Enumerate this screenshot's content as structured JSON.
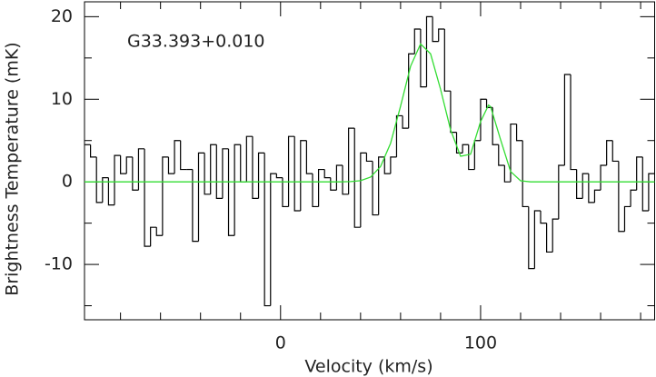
{
  "chart_data": {
    "type": "step",
    "annotation": "G33.393+0.010",
    "xlabel": "Velocity (km/s)",
    "ylabel": "Brightness Temperature (mK)",
    "xlim": [
      -98,
      187
    ],
    "ylim": [
      -16.7,
      21.8
    ],
    "xticks": [
      0,
      100
    ],
    "yticks": [
      -10,
      0,
      10,
      20
    ],
    "xminorticks": [
      -80,
      -60,
      -40,
      -20,
      20,
      40,
      60,
      80,
      120,
      140,
      160,
      180
    ],
    "yminorticks": [
      -15,
      -5,
      5,
      15
    ],
    "bin_start": -98,
    "bin_width": 3,
    "color": "#000000",
    "values": [
      4.5,
      3,
      -2.5,
      0.5,
      -2.8,
      3.2,
      1,
      3,
      -1,
      4,
      -7.8,
      -5.5,
      -6.5,
      3,
      1,
      5,
      1.5,
      1.5,
      -7.2,
      3.5,
      -1.5,
      4.5,
      -2,
      4,
      -6.5,
      4.5,
      0,
      5.5,
      -2,
      3.5,
      -15,
      1,
      0.5,
      -3,
      5.5,
      -3.5,
      5,
      1,
      -3,
      1.5,
      0.5,
      -1,
      2,
      -1.5,
      6.5,
      -5.5,
      3.5,
      2.5,
      -4,
      3,
      1,
      3,
      8,
      6.5,
      15.5,
      18.5,
      11.5,
      20,
      17,
      18.5,
      11,
      6,
      3.5,
      4.5,
      1.5,
      5,
      10,
      9,
      4.5,
      2,
      0,
      7,
      5,
      -3,
      -10.5,
      -3.5,
      -5,
      -8.5,
      -4.5,
      2,
      13,
      1.5,
      -2,
      1,
      -2.5,
      -1,
      2,
      5,
      2.5,
      -6,
      -3,
      -1,
      3,
      -3.5,
      1
    ],
    "fit": {
      "color": "#33dd33",
      "x": [
        -98,
        30,
        35,
        40,
        45,
        50,
        55,
        60,
        65,
        70,
        75,
        80,
        85,
        90,
        95,
        100,
        104,
        105,
        110,
        115,
        120,
        125,
        187
      ],
      "values": [
        0,
        0,
        0.03,
        0.14,
        0.57,
        1.86,
        4.67,
        9.17,
        14.0,
        16.7,
        15.5,
        11.2,
        6.3,
        3.1,
        3.35,
        7.3,
        9.3,
        9.1,
        5.1,
        1.25,
        0.13,
        0,
        0
      ]
    }
  }
}
